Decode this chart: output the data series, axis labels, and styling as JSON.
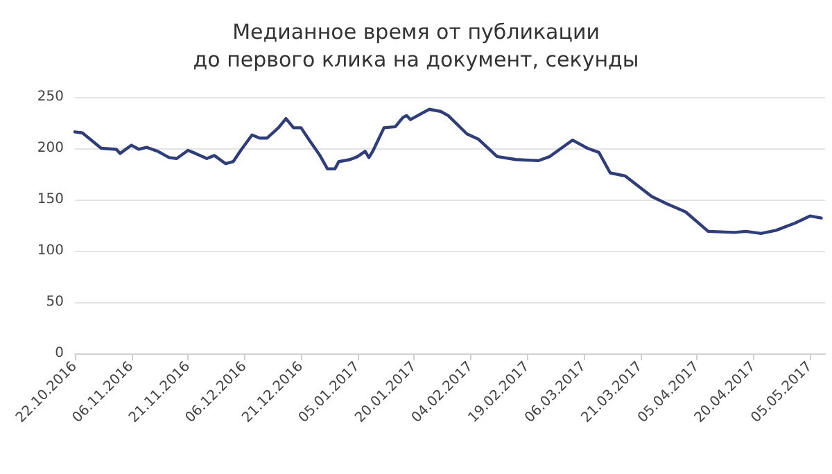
{
  "chart_data": {
    "type": "line",
    "title": "Медианное время от публикации\nдо первого клика на документ, секунды",
    "x": [
      "2016-10-22",
      "2016-10-24",
      "2016-10-29",
      "2016-11-02",
      "2016-11-03",
      "2016-11-06",
      "2016-11-08",
      "2016-11-10",
      "2016-11-13",
      "2016-11-16",
      "2016-11-18",
      "2016-11-21",
      "2016-11-23",
      "2016-11-26",
      "2016-11-28",
      "2016-12-01",
      "2016-12-03",
      "2016-12-05",
      "2016-12-08",
      "2016-12-10",
      "2016-12-12",
      "2016-12-15",
      "2016-12-17",
      "2016-12-19",
      "2016-12-21",
      "2016-12-23",
      "2016-12-26",
      "2016-12-28",
      "2016-12-30",
      "2016-12-31",
      "2017-01-03",
      "2017-01-05",
      "2017-01-07",
      "2017-01-08",
      "2017-01-09",
      "2017-01-12",
      "2017-01-15",
      "2017-01-17",
      "2017-01-18",
      "2017-01-19",
      "2017-01-22",
      "2017-01-24",
      "2017-01-27",
      "2017-01-29",
      "2017-02-03",
      "2017-02-06",
      "2017-02-11",
      "2017-02-16",
      "2017-02-22",
      "2017-02-25",
      "2017-02-28",
      "2017-03-03",
      "2017-03-07",
      "2017-03-10",
      "2017-03-13",
      "2017-03-17",
      "2017-03-24",
      "2017-03-28",
      "2017-04-02",
      "2017-04-08",
      "2017-04-15",
      "2017-04-18",
      "2017-04-22",
      "2017-04-26",
      "2017-05-01",
      "2017-05-05",
      "2017-05-08"
    ],
    "series": [
      {
        "color": "#2f3d78",
        "values": [
          216,
          215,
          200,
          199,
          195,
          203,
          199,
          201,
          197,
          191,
          190,
          198,
          195,
          190,
          193,
          185,
          187,
          198,
          213,
          210,
          210,
          220,
          229,
          220,
          220,
          209,
          193,
          180,
          180,
          187,
          189,
          192,
          197,
          191,
          197,
          220,
          221,
          230,
          232,
          228,
          234,
          238,
          236,
          232,
          214,
          209,
          192,
          189,
          188,
          192,
          200,
          208,
          200,
          196,
          176,
          173,
          153,
          146,
          138,
          119,
          118,
          119,
          117,
          120,
          127,
          134,
          132
        ]
      }
    ],
    "xlim": [
      "2016-10-22",
      "2017-05-09"
    ],
    "xticks": [
      {
        "value": "2016-10-22",
        "label": "22.10.2016"
      },
      {
        "value": "2016-11-06",
        "label": "06.11.2016"
      },
      {
        "value": "2016-11-21",
        "label": "21.11.2016"
      },
      {
        "value": "2016-12-06",
        "label": "06.12.2016"
      },
      {
        "value": "2016-12-21",
        "label": "21.12.2016"
      },
      {
        "value": "2017-01-05",
        "label": "05.01.2017"
      },
      {
        "value": "2017-01-20",
        "label": "20.01.2017"
      },
      {
        "value": "2017-02-04",
        "label": "04.02.2017"
      },
      {
        "value": "2017-02-19",
        "label": "19.02.2017"
      },
      {
        "value": "2017-03-06",
        "label": "06.03.2017"
      },
      {
        "value": "2017-03-21",
        "label": "21.03.2017"
      },
      {
        "value": "2017-04-05",
        "label": "05.04.2017"
      },
      {
        "value": "2017-04-20",
        "label": "20.04.2017"
      },
      {
        "value": "2017-05-05",
        "label": "05.05.2017"
      }
    ],
    "ylim": [
      0,
      250
    ],
    "yticks": [
      0,
      50,
      100,
      150,
      200,
      250
    ],
    "grid": "y",
    "marker": "none",
    "line_style": "solid"
  }
}
